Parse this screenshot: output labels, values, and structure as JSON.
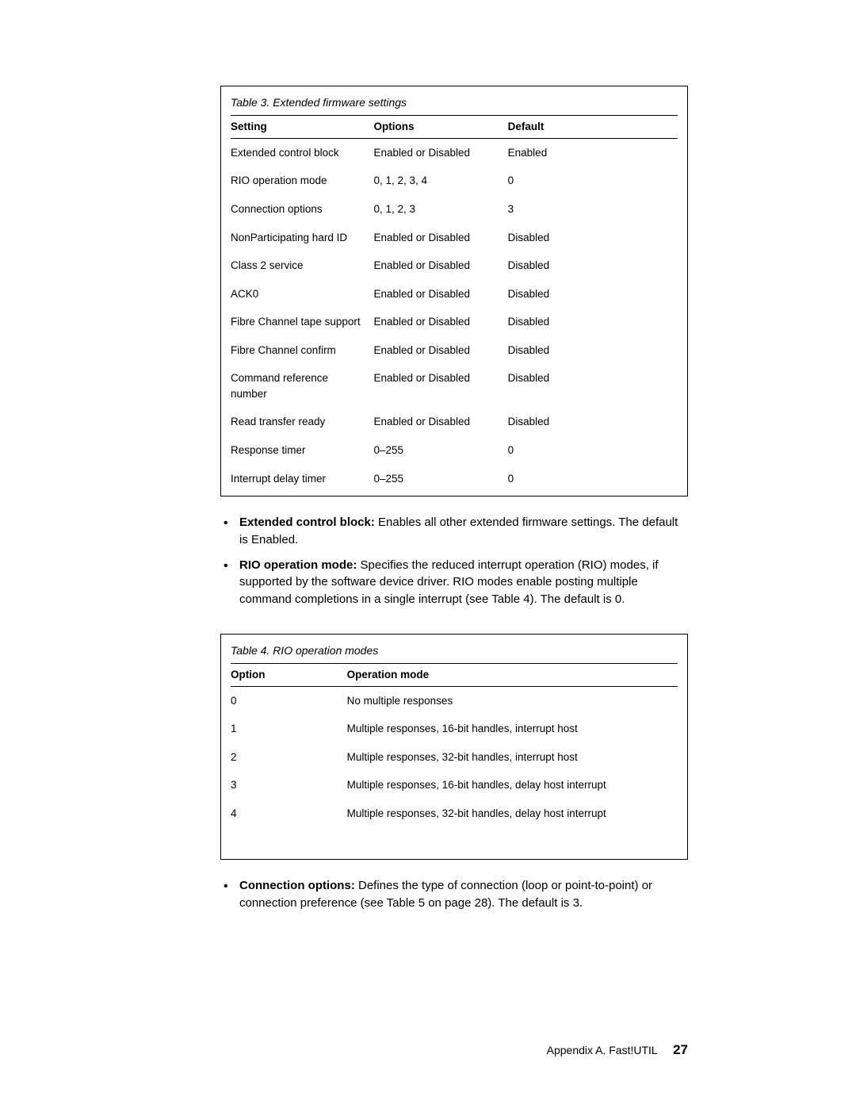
{
  "table3": {
    "caption": "Table 3. Extended firmware settings",
    "headers": {
      "c1": "Setting",
      "c2": "Options",
      "c3": "Default"
    },
    "rows": [
      {
        "c1": "Extended control block",
        "c2": "Enabled or Disabled",
        "c3": "Enabled"
      },
      {
        "c1": "RIO operation mode",
        "c2": "0, 1, 2, 3, 4",
        "c3": "0"
      },
      {
        "c1": "Connection options",
        "c2": "0, 1, 2, 3",
        "c3": "3"
      },
      {
        "c1": "NonParticipating hard ID",
        "c2": "Enabled or Disabled",
        "c3": "Disabled"
      },
      {
        "c1": "Class 2 service",
        "c2": "Enabled or Disabled",
        "c3": "Disabled"
      },
      {
        "c1": "ACK0",
        "c2": "Enabled or Disabled",
        "c3": "Disabled"
      },
      {
        "c1": "Fibre Channel tape support",
        "c2": "Enabled or Disabled",
        "c3": "Disabled"
      },
      {
        "c1": "Fibre Channel confirm",
        "c2": "Enabled or Disabled",
        "c3": "Disabled"
      },
      {
        "c1": "Command reference number",
        "c2": "Enabled or Disabled",
        "c3": "Disabled"
      },
      {
        "c1": "Read transfer ready",
        "c2": "Enabled or Disabled",
        "c3": "Disabled"
      },
      {
        "c1": "Response timer",
        "c2": "0–255",
        "c3": "0"
      },
      {
        "c1": "Interrupt delay timer",
        "c2": "0–255",
        "c3": "0"
      }
    ]
  },
  "bullets1": [
    {
      "term": "Extended control block:",
      "text": "  Enables all other extended firmware settings.  The default is Enabled."
    },
    {
      "term": "RIO operation mode:",
      "text": "  Specifies the reduced interrupt operation (RIO) modes, if supported by the software device driver.  RIO modes enable posting multiple command completions in a single interrupt (see Table 4).  The default is 0."
    }
  ],
  "table4": {
    "caption": "Table 4. RIO operation modes",
    "headers": {
      "c1": "Option",
      "c2": "Operation mode"
    },
    "rows": [
      {
        "c1": "0",
        "c2": "No multiple responses"
      },
      {
        "c1": "1",
        "c2": "Multiple responses, 16-bit handles, interrupt host"
      },
      {
        "c1": "2",
        "c2": "Multiple responses, 32-bit handles, interrupt host"
      },
      {
        "c1": "3",
        "c2": "Multiple responses, 16-bit handles, delay host interrupt"
      },
      {
        "c1": "4",
        "c2": "Multiple responses, 32-bit handles, delay host interrupt"
      }
    ]
  },
  "bullets2": [
    {
      "term": "Connection options:",
      "text": "  Defines the type of connection (loop or point-to-point) or connection preference (see Table 5 on page 28).  The default is 3."
    }
  ],
  "footer": {
    "label": "Appendix A.  Fast!UTIL",
    "page": "27"
  }
}
